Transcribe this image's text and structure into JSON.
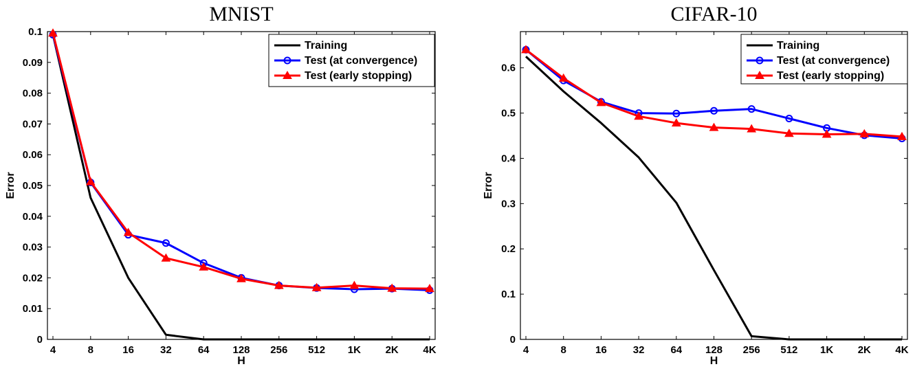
{
  "chart_data": [
    {
      "type": "line",
      "title": "MNIST",
      "xlabel": "H",
      "ylabel": "Error",
      "categories": [
        "4",
        "8",
        "16",
        "32",
        "64",
        "128",
        "256",
        "512",
        "1K",
        "2K",
        "4K"
      ],
      "ylim": [
        0,
        0.1
      ],
      "yticks": [
        "0",
        "0.01",
        "0.02",
        "0.03",
        "0.04",
        "0.05",
        "0.06",
        "0.07",
        "0.08",
        "0.09",
        "0.1"
      ],
      "legend_position": "top-right",
      "series": [
        {
          "name": "Training",
          "color": "#000000",
          "marker": "none",
          "values": [
            0.099,
            0.046,
            0.02,
            0.0015,
            0,
            0,
            0,
            0,
            0,
            0,
            0
          ]
        },
        {
          "name": "Test (at convergence)",
          "color": "#0000ff",
          "marker": "circle",
          "values": [
            0.099,
            0.051,
            0.034,
            0.0313,
            0.0248,
            0.02,
            0.0175,
            0.0167,
            0.0163,
            0.0165,
            0.016
          ]
        },
        {
          "name": "Test (early stopping)",
          "color": "#ff0000",
          "marker": "triangle",
          "values": [
            0.0995,
            0.0512,
            0.0347,
            0.0264,
            0.0235,
            0.0197,
            0.0175,
            0.0168,
            0.0175,
            0.0166,
            0.0165
          ]
        }
      ]
    },
    {
      "type": "line",
      "title": "CIFAR-10",
      "xlabel": "H",
      "ylabel": "Error",
      "categories": [
        "4",
        "8",
        "16",
        "32",
        "64",
        "128",
        "256",
        "512",
        "1K",
        "2K",
        "4K"
      ],
      "ylim": [
        0,
        0.68
      ],
      "yticks": [
        "0",
        "0.1",
        "0.2",
        "0.3",
        "0.4",
        "0.5",
        "0.6"
      ],
      "legend_position": "top-right",
      "series": [
        {
          "name": "Training",
          "color": "#000000",
          "marker": "none",
          "values": [
            0.625,
            0.548,
            0.478,
            0.402,
            0.302,
            0.153,
            0.007,
            0,
            0,
            0,
            0
          ]
        },
        {
          "name": "Test (at convergence)",
          "color": "#0000ff",
          "marker": "circle",
          "values": [
            0.64,
            0.572,
            0.525,
            0.5,
            0.499,
            0.505,
            0.509,
            0.488,
            0.467,
            0.451,
            0.444
          ]
        },
        {
          "name": "Test (early stopping)",
          "color": "#ff0000",
          "marker": "triangle",
          "values": [
            0.64,
            0.577,
            0.523,
            0.493,
            0.478,
            0.468,
            0.465,
            0.455,
            0.453,
            0.454,
            0.448
          ]
        }
      ]
    }
  ]
}
